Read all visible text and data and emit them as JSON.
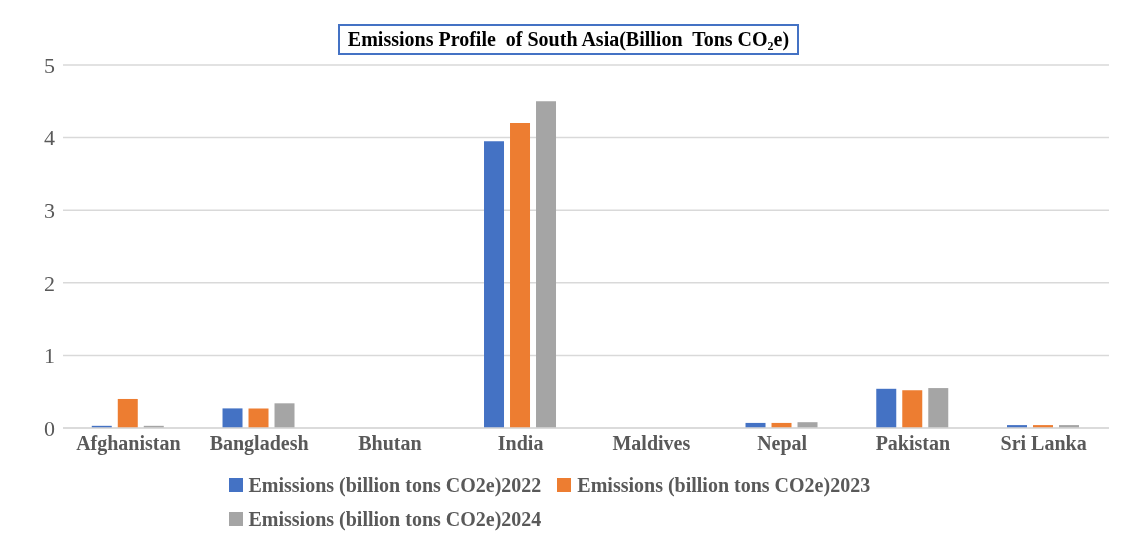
{
  "chart_data": {
    "type": "bar",
    "title": "Emissions Profile  of South Asia(Billion  Tons CO₂e)",
    "categories": [
      "Afghanistan",
      "Bangladesh",
      "Bhutan",
      "India",
      "Maldives",
      "Nepal",
      "Pakistan",
      "Sri Lanka"
    ],
    "series": [
      {
        "name": "Emissions (billion tons CO2e)2022",
        "color": "#4472c4",
        "values": [
          0.03,
          0.27,
          0,
          3.95,
          0,
          0.07,
          0.54,
          0.04
        ]
      },
      {
        "name": "Emissions (billion tons CO2e)2023",
        "color": "#ed7d31",
        "values": [
          0.4,
          0.27,
          0,
          4.2,
          0,
          0.07,
          0.52,
          0.04
        ]
      },
      {
        "name": "Emissions (billion tons CO2e)2024",
        "color": "#a5a5a5",
        "values": [
          0.03,
          0.34,
          0,
          4.5,
          0,
          0.08,
          0.55,
          0.04
        ]
      }
    ],
    "ylim": [
      0,
      5
    ],
    "yticks": [
      0,
      1,
      2,
      3,
      4,
      5
    ],
    "grid": "y",
    "legend": "bottom"
  }
}
